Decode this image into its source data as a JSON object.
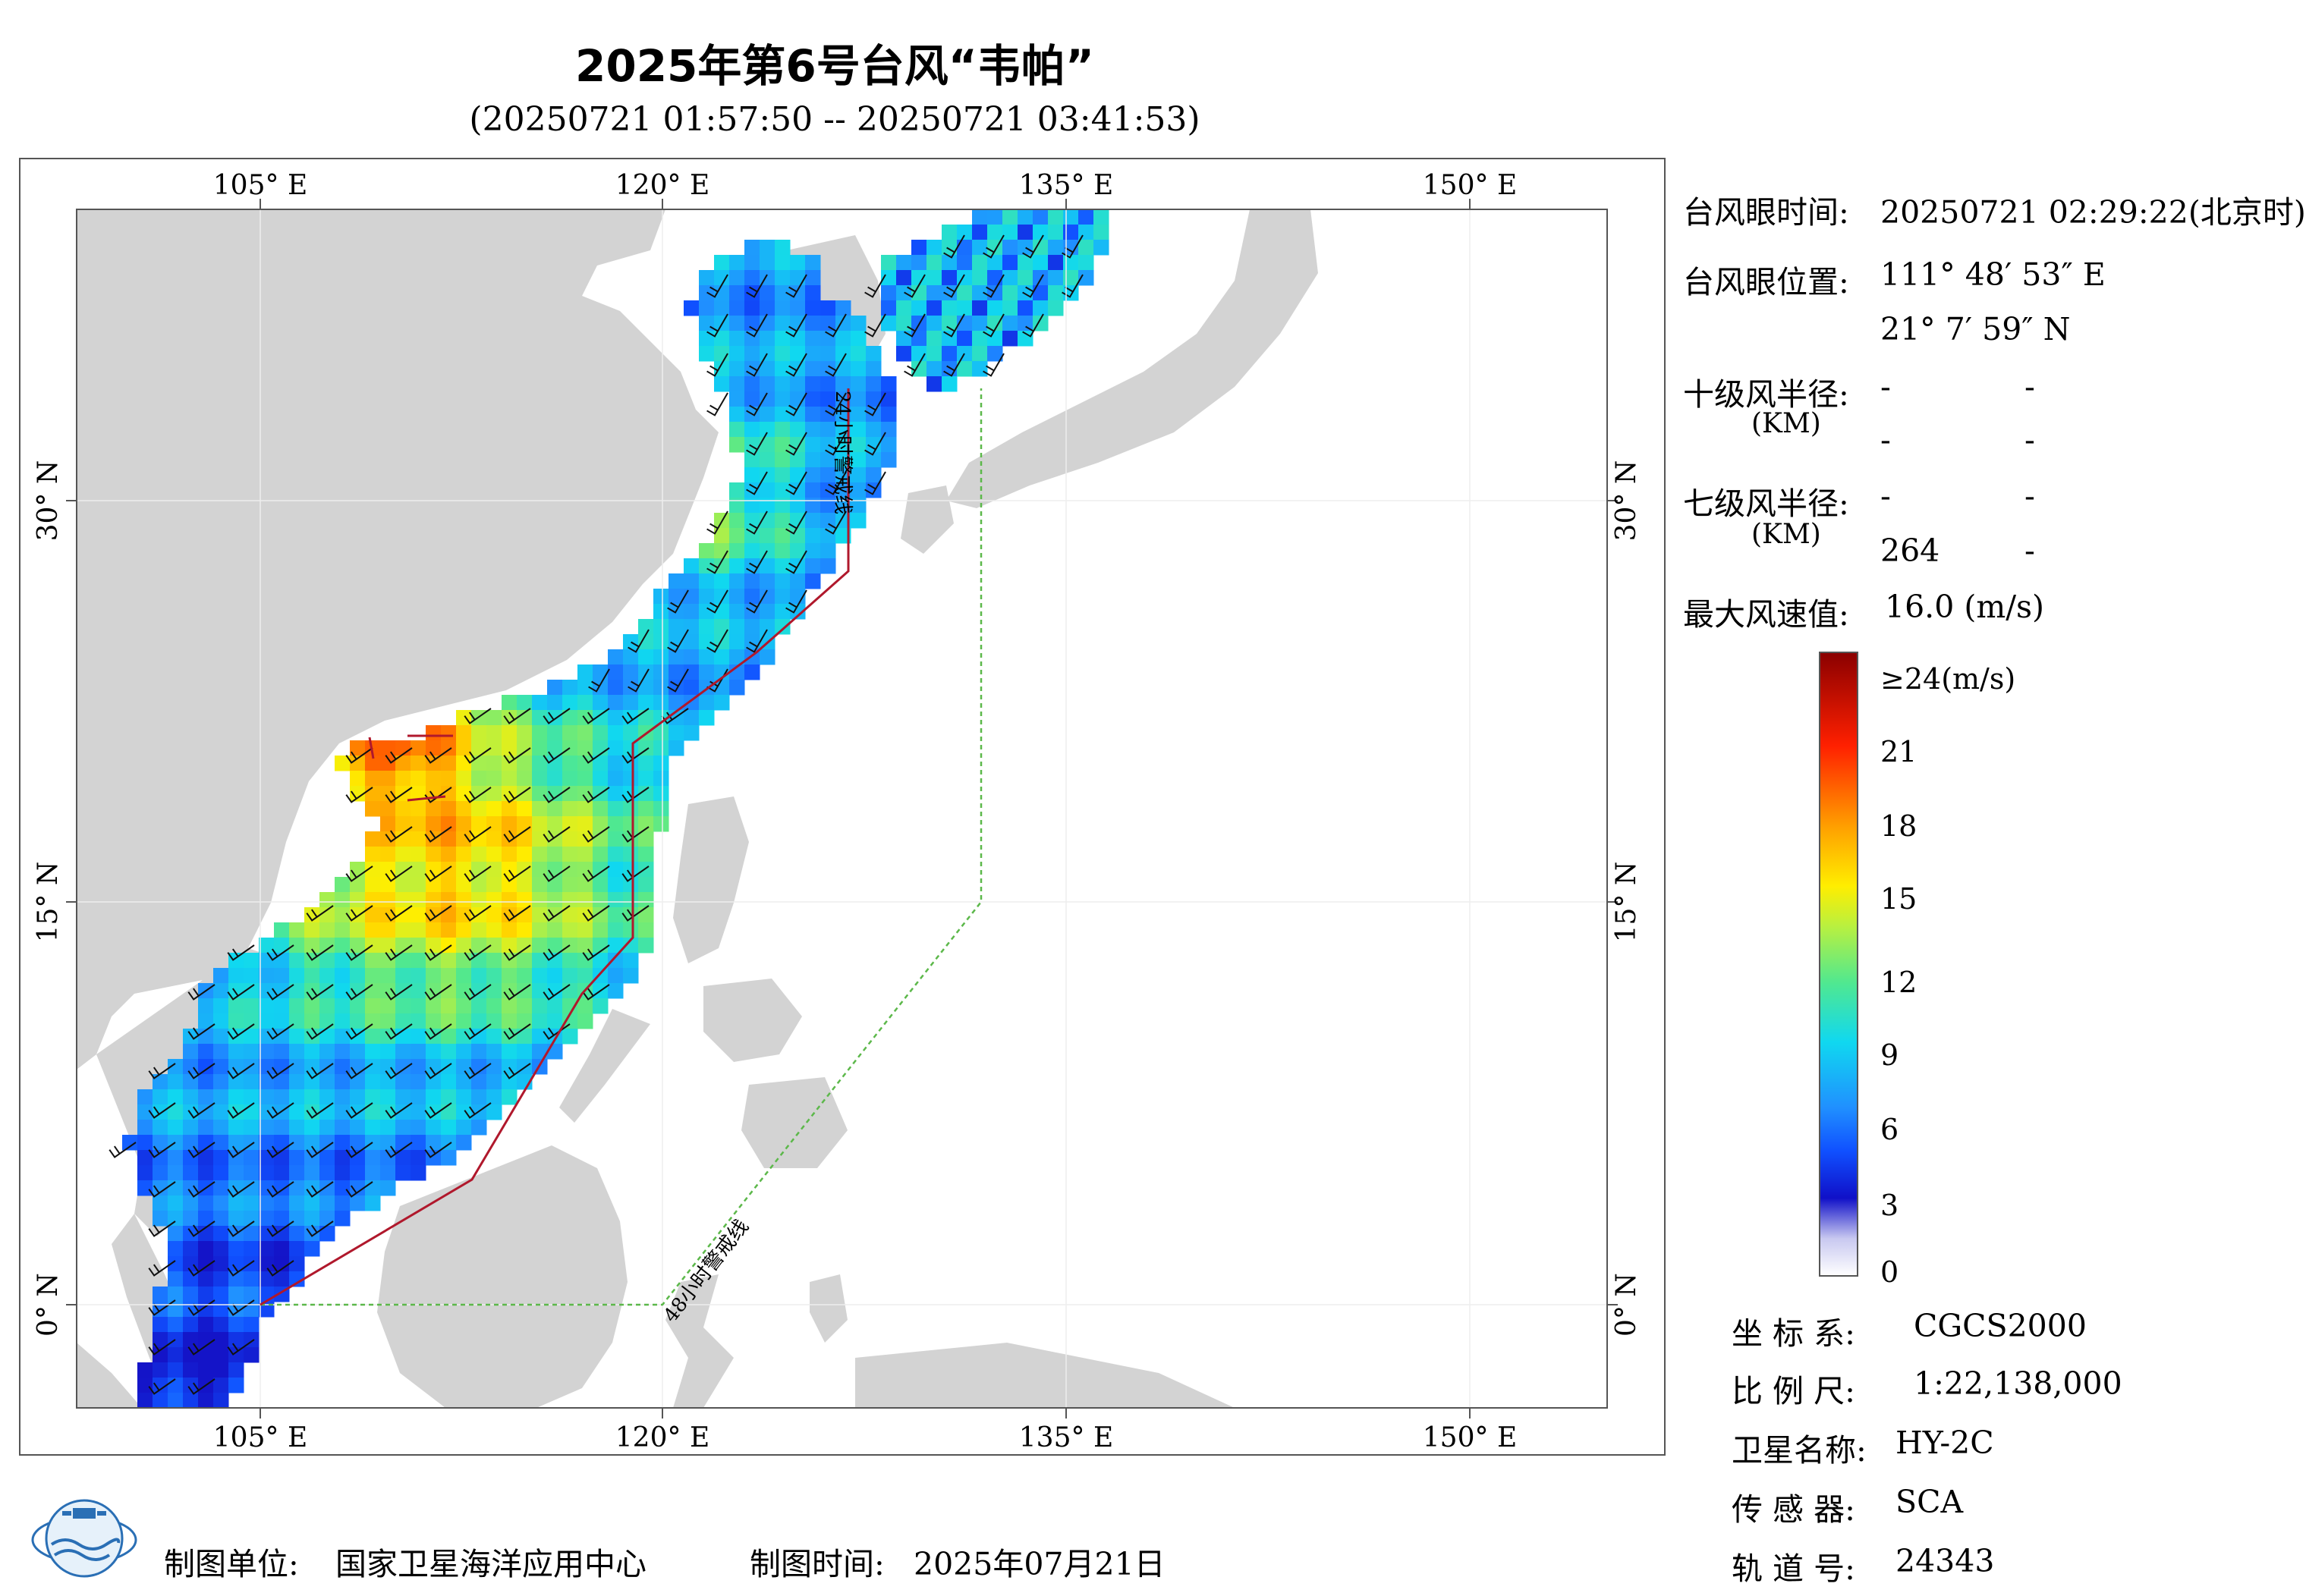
{
  "title": "2025年第6号台风“韦帕”",
  "subtitle": "(20250721 01:57:50 -- 20250721 03:41:53)",
  "map": {
    "lon_labels": [
      "105° E",
      "120° E",
      "135° E",
      "150° E"
    ],
    "lat_labels": [
      "30° N",
      "15° N",
      "0° N"
    ],
    "warning_24h_label": "24小时警戒线",
    "warning_48h_label": "48小时警戒线",
    "colors": {
      "land": "#d3d3d3",
      "sea": "#ffffff",
      "warning_24h": "#b0182c",
      "warning_48h": "#5cb84a"
    }
  },
  "info": {
    "eye_time_label": "台风眼时间:",
    "eye_time_value": "20250721 02:29:22(北京时)",
    "eye_pos_label": "台风眼位置:",
    "eye_lon": "111° 48′ 53″ E",
    "eye_lat": "21° 7′ 59″ N",
    "r10_label": "十级风半径:",
    "r10_unit": "(KM)",
    "r10_values": [
      "-",
      "-",
      "-",
      "-"
    ],
    "r7_label": "七级风半径:",
    "r7_unit": "(KM)",
    "r7_values": [
      "-",
      "-",
      "264",
      "-"
    ],
    "max_wind_label": "最大风速值:",
    "max_wind_value": "16.0 (m/s)"
  },
  "colorbar": {
    "labels": [
      "≥24(m/s)",
      "21",
      "18",
      "15",
      "12",
      "9",
      "6",
      "3",
      "0"
    ],
    "max": 24
  },
  "meta": {
    "crs_label": "坐 标 系:",
    "crs_value": "CGCS2000",
    "scale_label": "比 例 尺:",
    "scale_value": "1:22,138,000",
    "satellite_label": "卫星名称:",
    "satellite_value": "HY-2C",
    "sensor_label": "传 感 器:",
    "sensor_value": "SCA",
    "orbit_label": "轨 道 号:",
    "orbit_value": "24343"
  },
  "footer": {
    "unit_label": "制图单位:",
    "unit_value": "国家卫星海洋应用中心",
    "time_label": "制图时间:",
    "time_value": "2025年07月21日"
  }
}
